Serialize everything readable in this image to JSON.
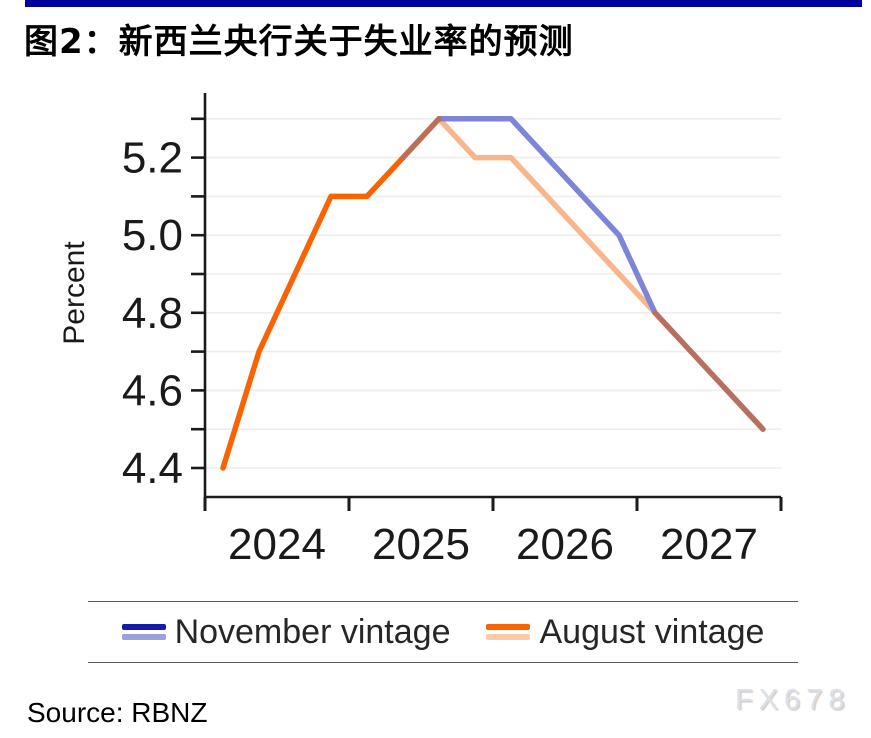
{
  "header": {
    "title": "图2：新西兰央行关于失业率的预测"
  },
  "accent_color": "#00009B",
  "chart_data": {
    "type": "line",
    "title": "图2：新西兰央行关于失业率的预测",
    "ylabel": "Percent",
    "xlabel": "",
    "xlim": [
      2024,
      2028
    ],
    "ylim": [
      4.35,
      5.4
    ],
    "grid": true,
    "legend_position": "bottom",
    "x_tick_years": [
      2024,
      2025,
      2026,
      2027,
      2028
    ],
    "x_tick_labels": [
      "2024",
      "2025",
      "2026",
      "2027"
    ],
    "y_ticks": [
      4.4,
      4.5,
      4.6,
      4.7,
      4.8,
      4.9,
      5.0,
      5.1,
      5.2,
      5.3
    ],
    "y_grid": [
      4.4,
      4.5,
      4.6,
      4.7,
      4.8,
      4.9,
      5.0,
      5.1,
      5.2,
      5.3
    ],
    "y_tick_labels": [
      {
        "v": 4.4,
        "label": "4.4"
      },
      {
        "v": 4.6,
        "label": "4.6"
      },
      {
        "v": 4.8,
        "label": "4.8"
      },
      {
        "v": 5.0,
        "label": "5.0"
      },
      {
        "v": 5.2,
        "label": "5.2"
      }
    ],
    "series": [
      {
        "name": "November vintage",
        "x": [
          2025.375,
          2025.625,
          2025.875,
          2026.125,
          2026.375,
          2026.625,
          2026.875,
          2027.125,
          2027.375,
          2027.625,
          2027.875
        ],
        "values": [
          5.2,
          5.3,
          5.3,
          5.3,
          5.2,
          5.1,
          5.0,
          4.8,
          4.7,
          4.6,
          4.5
        ]
      },
      {
        "name": "August vintage",
        "x": [
          2024.125,
          2024.375,
          2024.625,
          2024.875,
          2025.125,
          2025.375,
          2025.625,
          2025.875,
          2026.125,
          2026.375,
          2026.625,
          2026.875,
          2027.125,
          2027.375,
          2027.625,
          2027.875
        ],
        "values": [
          4.4,
          4.7,
          4.9,
          5.1,
          5.1,
          5.2,
          5.3,
          5.2,
          5.2,
          5.1,
          5.0,
          4.9,
          4.8,
          4.7,
          4.6,
          4.5
        ]
      }
    ],
    "render_segments": [
      {
        "id": "august-history",
        "color": "#F96302",
        "x": [
          2024.125,
          2024.375,
          2024.625,
          2024.875,
          2025.125,
          2025.375
        ],
        "v": [
          4.4,
          4.7,
          4.9,
          5.1,
          5.1,
          5.2
        ]
      },
      {
        "id": "august-forecast",
        "color": "#F9B68C",
        "x": [
          2025.625,
          2025.875,
          2026.125,
          2027.125
        ],
        "v": [
          5.3,
          5.2,
          5.2,
          4.8
        ]
      },
      {
        "id": "november-forecast",
        "color": "#7C85D6",
        "x": [
          2025.625,
          2026.125,
          2026.875,
          2027.125
        ],
        "v": [
          5.3,
          5.3,
          5.0,
          4.8
        ]
      },
      {
        "id": "overlap-rise",
        "color": "#BC6F58",
        "x": [
          2025.375,
          2025.625
        ],
        "v": [
          5.2,
          5.3
        ]
      },
      {
        "id": "overlap-tail",
        "color": "#B96F5F",
        "x": [
          2027.125,
          2027.875
        ],
        "v": [
          4.8,
          4.5
        ]
      }
    ]
  },
  "legend": {
    "items": [
      {
        "label": "November vintage",
        "colors": [
          "#1519AC",
          "#99A2DC"
        ]
      },
      {
        "label": "August vintage",
        "colors": [
          "#F96302",
          "#FBCBA8"
        ]
      }
    ]
  },
  "footer": {
    "source": "Source: RBNZ",
    "watermark": "FX678"
  }
}
